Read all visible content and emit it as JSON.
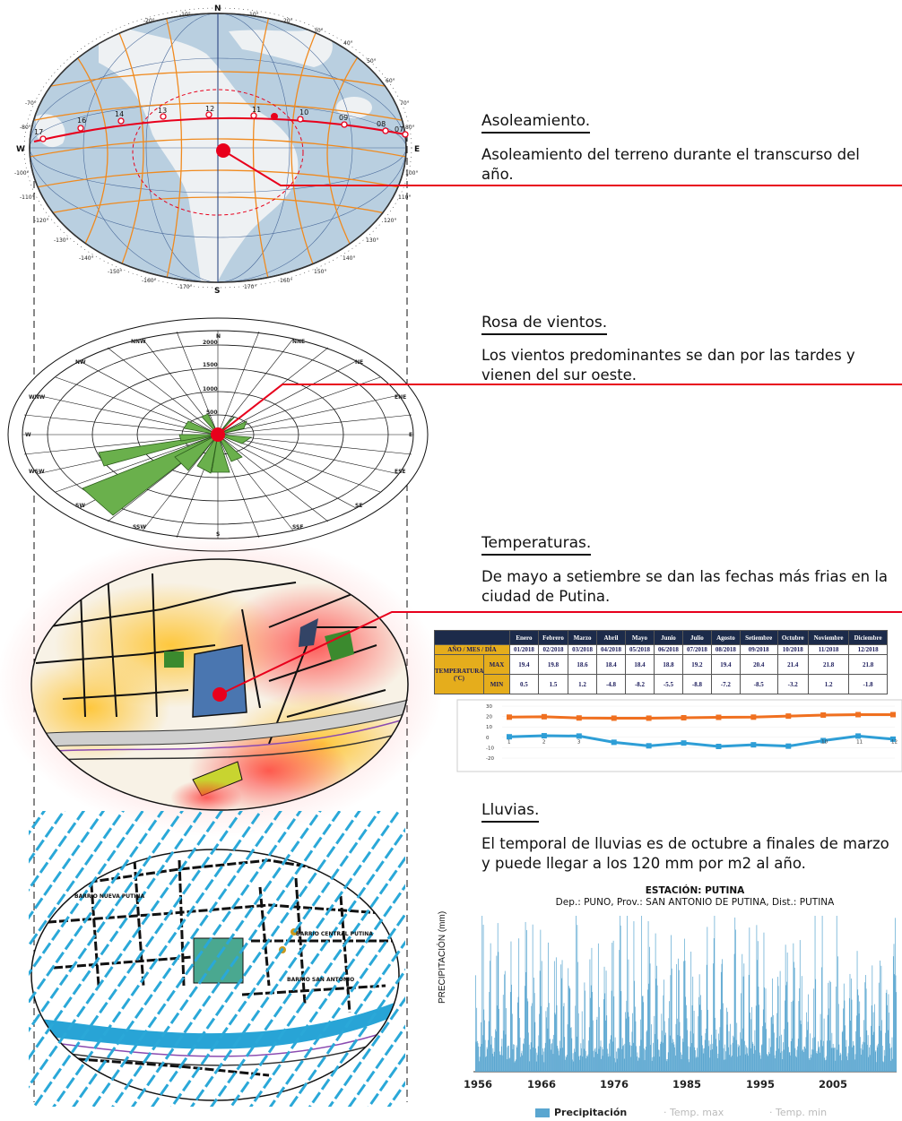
{
  "sections": [
    {
      "title": "Asoleamiento.",
      "desc": "Asoleamiento del terreno durante el transcurso del año."
    },
    {
      "title": "Rosa de vientos.",
      "desc": "Los vientos predominantes se dan por las tardes y vienen del sur oeste."
    },
    {
      "title": "Temperaturas.",
      "desc": "De mayo a setiembre se dan las fechas más frias en la ciudad de Putina."
    },
    {
      "title": "Lluvias.",
      "desc": "El temporal de lluvias es de octubre a finales de marzo y puede llegar a los 120 mm por m2 al año."
    }
  ],
  "sun_diagram": {
    "cardinals": [
      "N",
      "S",
      "E",
      "W"
    ],
    "hours": [
      "17",
      "16",
      "14",
      "13",
      "12",
      "11",
      "10",
      "09",
      "08",
      "07"
    ],
    "degree_labels": [
      "-10°",
      "-20°",
      "10°",
      "20°",
      "30°",
      "40°",
      "50°",
      "60°",
      "-70°",
      "-80°",
      "-100°",
      "-110°",
      "-120°",
      "-130°",
      "-140°",
      "-150°",
      "-160°",
      "-170°",
      "170°",
      "160°",
      "150°",
      "140°",
      "130°",
      "120°",
      "110°",
      "100°",
      "80°",
      "70°"
    ],
    "accent_color": "#e8001c"
  },
  "wind_rose": {
    "directions": [
      "N",
      "NNE",
      "NE",
      "ENE",
      "E",
      "ESE",
      "SE",
      "SSE",
      "S",
      "SSW",
      "SW",
      "WSW",
      "W",
      "WNW",
      "NW",
      "NNW"
    ],
    "rings": [
      "500",
      "1000",
      "1500",
      "2000"
    ],
    "petal_color": "#6ab04c"
  },
  "temperature_table": {
    "header_label": "AÑO / MES / DÍA",
    "row_label": "TEMPERATURA (ºC)",
    "max_label": "MAX",
    "min_label": "MIN",
    "months": [
      "Enero",
      "Febrero",
      "Marzo",
      "Abril",
      "Mayo",
      "Junio",
      "Julio",
      "Agosto",
      "Setiembre",
      "Octubre",
      "Noviembre",
      "Diciembre"
    ],
    "dates": [
      "01/2018",
      "02/2018",
      "03/2018",
      "04/2018",
      "05/2018",
      "06/2018",
      "07/2018",
      "08/2018",
      "09/2018",
      "10/2018",
      "11/2018",
      "12/2018"
    ],
    "max": [
      "19.4",
      "19.8",
      "18.6",
      "18.4",
      "18.4",
      "18.8",
      "19.2",
      "19.4",
      "20.4",
      "21.4",
      "21.8",
      "21.8"
    ],
    "min": [
      "0.5",
      "1.5",
      "1.2",
      "-4.8",
      "-8.2",
      "-5.5",
      "-8.8",
      "-7.2",
      "-8.5",
      "-3.2",
      "1.2",
      "-1.8"
    ]
  },
  "chart_data": [
    {
      "type": "line",
      "x": [
        1,
        2,
        3,
        4,
        5,
        6,
        7,
        8,
        9,
        10,
        11,
        12
      ],
      "series": [
        {
          "values": [
            19.4,
            19.8,
            18.6,
            18.4,
            18.4,
            18.8,
            19.2,
            19.4,
            20.4,
            21.4,
            21.8,
            21.8
          ],
          "color": "#f07020"
        },
        {
          "values": [
            0.5,
            1.5,
            1.2,
            -4.8,
            -8.2,
            -5.5,
            -8.8,
            -7.2,
            -8.5,
            -3.2,
            1.2,
            -1.8
          ],
          "color": "#2e9ed6"
        }
      ],
      "yticks": [
        "30",
        "20",
        "10",
        "0",
        "-10",
        "-20"
      ],
      "ylim": [
        -20,
        30
      ],
      "xticks": [
        "1",
        "2",
        "3",
        "10",
        "11",
        "12"
      ]
    },
    {
      "type": "bar",
      "title": "ESTACIÓN: PUTINA",
      "subtitle": "Dep.: PUNO, Prov.: SAN ANTONIO DE PUTINA, Dist.: PUTINA",
      "ylabel": "PRECIPITACIÓN (mm)",
      "xlim": [
        1956,
        2015
      ],
      "xticks": [
        "1956",
        "1966",
        "1976",
        "1985",
        "1995",
        "2005"
      ],
      "series": [
        {
          "name": "Precipitación",
          "color": "#5aa6d0"
        }
      ],
      "legend": [
        "Precipitación",
        "Temp. max",
        "Temp. min"
      ],
      "bar_color": "#5aa6d0",
      "peak_mm": 120
    }
  ],
  "map_labels": [
    "BARRIO NUEVA PUTINA",
    "BARRIO CENTRAL PUTINA",
    "BARRIO SAN ANTONIO"
  ]
}
